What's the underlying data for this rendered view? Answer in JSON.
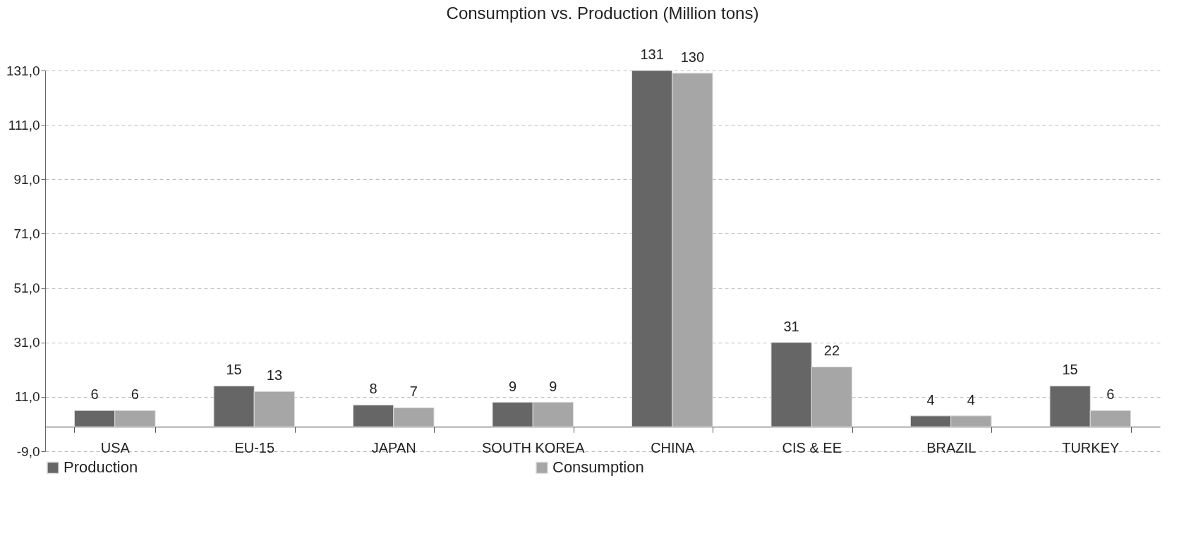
{
  "chart_data": {
    "type": "bar",
    "title": "Consumption vs. Production (Million tons)",
    "categories": [
      "USA",
      "EU-15",
      "JAPAN",
      "SOUTH KOREA",
      "CHINA",
      "CIS & EE",
      "BRAZIL",
      "TURKEY"
    ],
    "series": [
      {
        "name": "Production",
        "color": "#666666",
        "values": [
          6,
          15,
          8,
          9,
          131,
          31,
          4,
          15
        ]
      },
      {
        "name": "Consumption",
        "color": "#a6a6a6",
        "values": [
          6,
          13,
          7,
          9,
          130,
          22,
          4,
          6
        ]
      }
    ],
    "ylim": [
      -9,
      131
    ],
    "yticks": [
      {
        "value": -9,
        "label": "-9,0"
      },
      {
        "value": 11,
        "label": "11,0"
      },
      {
        "value": 31,
        "label": "31,0"
      },
      {
        "value": 51,
        "label": "51,0"
      },
      {
        "value": 71,
        "label": "71,0"
      },
      {
        "value": 91,
        "label": "91,0"
      },
      {
        "value": 111,
        "label": "111,0"
      },
      {
        "value": 131,
        "label": "131,0"
      }
    ],
    "grid": "y",
    "legend": "bottom",
    "data_labels": true
  }
}
